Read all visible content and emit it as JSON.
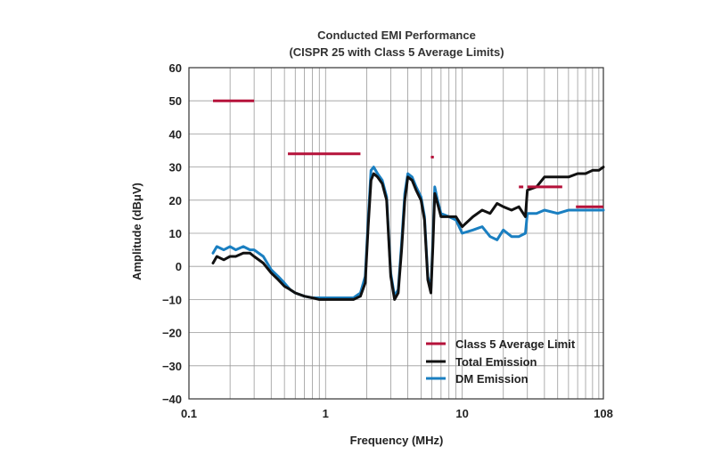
{
  "chart_data": {
    "type": "line",
    "title": "Conducted EMI Performance",
    "subtitle": "(CISPR 25 with Class 5 Average Limits)",
    "xlabel": "Frequency (MHz)",
    "ylabel": "Amplitude (dBμV)",
    "xscale": "log",
    "xlim": [
      0.1,
      108
    ],
    "ylim": [
      -40,
      60
    ],
    "x_ticks": [
      0.1,
      1,
      10,
      108
    ],
    "x_tick_labels": [
      "0.1",
      "1",
      "10",
      "108"
    ],
    "y_ticks": [
      -40,
      -30,
      -20,
      -10,
      0,
      10,
      20,
      30,
      40,
      50,
      60
    ],
    "y_tick_labels": [
      "−40",
      "−30",
      "−20",
      "−10",
      "0",
      "10",
      "20",
      "30",
      "40",
      "50",
      "60"
    ],
    "grid": true,
    "legend_position": "bottom-right",
    "series": [
      {
        "name": "Class 5 Average Limit",
        "color": "#b5123a",
        "style": "segments",
        "segments": [
          {
            "x": [
              0.15,
              0.3
            ],
            "y": 50
          },
          {
            "x": [
              0.53,
              1.8
            ],
            "y": 34
          },
          {
            "x": [
              5.9,
              6.2
            ],
            "y": 33
          },
          {
            "x": [
              26,
              28
            ],
            "y": 24
          },
          {
            "x": [
              30,
              54
            ],
            "y": 24
          },
          {
            "x": [
              68,
              108
            ],
            "y": 18
          }
        ]
      },
      {
        "name": "Total Emission",
        "color": "#111111",
        "style": "line",
        "x": [
          0.15,
          0.16,
          0.18,
          0.2,
          0.22,
          0.25,
          0.28,
          0.3,
          0.35,
          0.4,
          0.45,
          0.5,
          0.55,
          0.6,
          0.7,
          0.8,
          0.9,
          1.0,
          1.2,
          1.4,
          1.6,
          1.8,
          1.95,
          2.05,
          2.15,
          2.25,
          2.4,
          2.6,
          2.8,
          3.0,
          3.2,
          3.4,
          3.6,
          3.8,
          4.0,
          4.3,
          4.6,
          5.0,
          5.3,
          5.6,
          5.9,
          6.1,
          6.3,
          6.6,
          7.0,
          8.0,
          9.0,
          10,
          12,
          14,
          16,
          18,
          20,
          23,
          26,
          29,
          30,
          35,
          40,
          50,
          60,
          70,
          80,
          90,
          100,
          108
        ],
        "y": [
          1,
          3,
          2,
          3,
          3,
          4,
          4,
          3,
          1,
          -2,
          -4,
          -6,
          -7,
          -8,
          -9,
          -9.5,
          -10,
          -10,
          -10,
          -10,
          -10,
          -9,
          -5,
          12,
          26,
          28,
          27,
          25,
          20,
          -3,
          -10,
          -8,
          5,
          20,
          27,
          26,
          23,
          20,
          14,
          -4,
          -8,
          6,
          22,
          19,
          15,
          15,
          15,
          12,
          15,
          17,
          16,
          19,
          18,
          17,
          18,
          15,
          23,
          24,
          27,
          27,
          27,
          28,
          28,
          29,
          29,
          30
        ]
      },
      {
        "name": "DM Emission",
        "color": "#1a7fc1",
        "style": "line",
        "x": [
          0.15,
          0.16,
          0.18,
          0.2,
          0.22,
          0.25,
          0.28,
          0.3,
          0.35,
          0.4,
          0.45,
          0.5,
          0.55,
          0.6,
          0.7,
          0.8,
          0.9,
          1.0,
          1.2,
          1.4,
          1.6,
          1.8,
          1.95,
          2.05,
          2.15,
          2.25,
          2.4,
          2.6,
          2.8,
          3.0,
          3.2,
          3.4,
          3.6,
          3.8,
          4.0,
          4.3,
          4.6,
          5.0,
          5.3,
          5.6,
          5.9,
          6.1,
          6.3,
          6.6,
          7.0,
          8.0,
          9.0,
          10,
          12,
          14,
          16,
          18,
          20,
          23,
          26,
          29,
          30,
          35,
          40,
          50,
          60,
          70,
          80,
          90,
          100,
          108
        ],
        "y": [
          4,
          6,
          5,
          6,
          5,
          6,
          5,
          5,
          3,
          -1,
          -3,
          -5,
          -7,
          -8,
          -9,
          -9.5,
          -9.5,
          -9.5,
          -9.5,
          -9.5,
          -9.5,
          -8,
          -3,
          14,
          29,
          30,
          28,
          26,
          21,
          -2,
          -9,
          -7,
          7,
          22,
          28,
          27,
          24,
          21,
          15,
          -3,
          -7,
          8,
          24,
          20,
          16,
          15,
          14,
          10,
          11,
          12,
          9,
          8,
          11,
          9,
          9,
          10,
          16,
          16,
          17,
          16,
          17,
          17,
          17,
          17,
          17,
          17
        ]
      }
    ]
  }
}
